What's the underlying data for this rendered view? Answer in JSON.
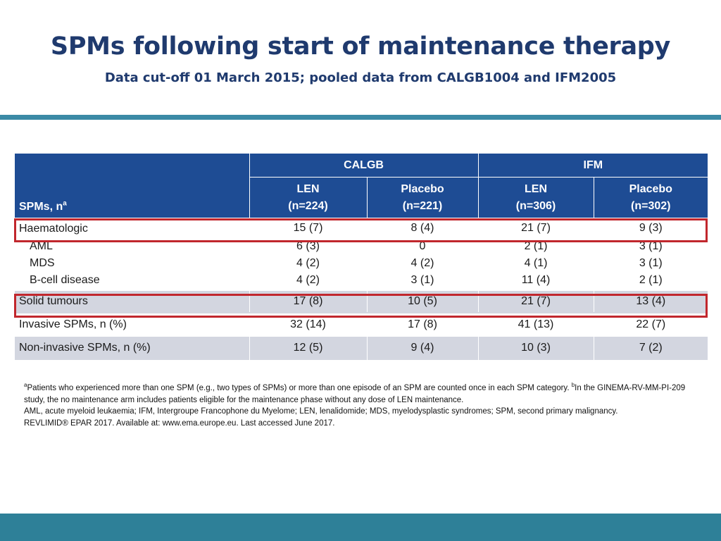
{
  "title": "SPMs following start of maintenance therapy",
  "subtitle": "Data cut-off 01 March 2015; pooled data from CALGB1004 and IFM2005",
  "table": {
    "stub_header": "SPMs, n",
    "stub_header_sup": "a",
    "groups": [
      "CALGB",
      "IFM"
    ],
    "columns": [
      {
        "arm": "LEN",
        "n": "(n=224)"
      },
      {
        "arm": "Placebo",
        "n": "(n=221)"
      },
      {
        "arm": "LEN",
        "n": "(n=306)"
      },
      {
        "arm": "Placebo",
        "n": "(n=302)"
      }
    ],
    "rows": [
      {
        "label": "Haematologic",
        "values": [
          "15 (7)",
          "8 (4)",
          "21 (7)",
          "9 (3)"
        ]
      },
      {
        "label": "AML",
        "values": [
          "6 (3)",
          "0",
          "2 (1)",
          "3 (1)"
        ]
      },
      {
        "label": "MDS",
        "values": [
          "4 (2)",
          "4 (2)",
          "4 (1)",
          "3 (1)"
        ]
      },
      {
        "label": "B-cell disease",
        "values": [
          "4 (2)",
          "3 (1)",
          "11 (4)",
          "2 (1)"
        ]
      },
      {
        "label": "Solid tumours",
        "values": [
          "17 (8)",
          "10 (5)",
          "21 (7)",
          "13 (4)"
        ]
      },
      {
        "label": "Invasive SPMs, n (%)",
        "values": [
          "32 (14)",
          "17 (8)",
          "41 (13)",
          "22 (7)"
        ]
      },
      {
        "label": "Non-invasive SPMs, n (%)",
        "values": [
          "12 (5)",
          "9 (4)",
          "10 (3)",
          "7 (2)"
        ]
      }
    ]
  },
  "footnotes": {
    "a_sup": "a",
    "a_text": "Patients who experienced more than one SPM (e.g., two types of SPMs) or more than one episode of an SPM are counted once in each SPM category. ",
    "b_sup": "b",
    "b_text": "In the GINEMA-RV-MM-PI-209 study, the no maintenance arm includes patients eligible for the maintenance phase without any dose of LEN maintenance.",
    "abbreviations": "AML, acute myeloid leukaemia; IFM, Intergroupe Francophone du Myelome; LEN, lenalidomide; MDS, myelodysplastic syndromes; SPM, second primary malignancy.",
    "reference": "REVLIMID® EPAR 2017. Available at: www.ema.europe.eu. Last accessed June 2017."
  },
  "colors": {
    "title": "#1f3a6e",
    "header_bg": "#1e4c94",
    "shaded_row": "#d3d6e0",
    "highlight_box": "#c1272d",
    "accent_bar": "#2e8098"
  }
}
